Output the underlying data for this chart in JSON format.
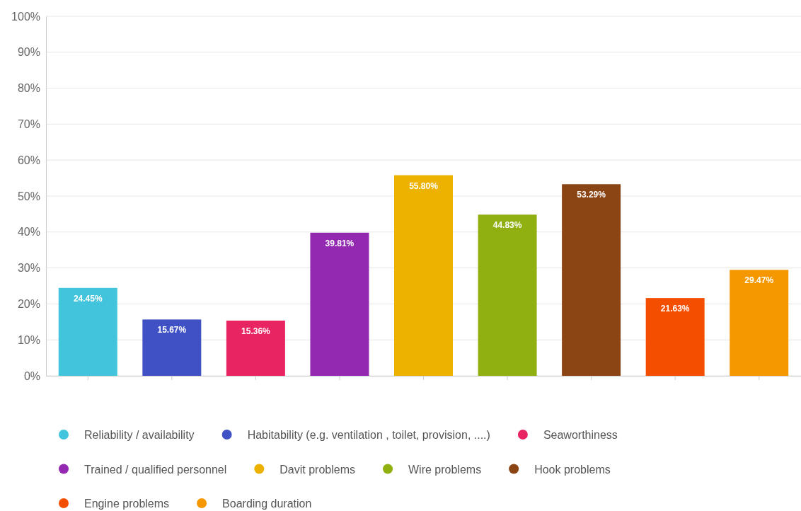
{
  "chart_data": {
    "type": "bar",
    "categories": [
      null,
      null,
      null,
      null,
      null,
      null,
      null,
      null,
      null
    ],
    "series": [
      {
        "name": "Reliability / availability",
        "color": "#42c5dc",
        "values": [
          24.45,
          null,
          null,
          null,
          null,
          null,
          null,
          null,
          null
        ],
        "value_labels": [
          "24.45%",
          null,
          null,
          null,
          null,
          null,
          null,
          null,
          null
        ]
      },
      {
        "name": "Habitability (e.g. ventilation , toilet, provision, ....)",
        "color": "#3f51c4",
        "values": [
          null,
          15.67,
          null,
          null,
          null,
          null,
          null,
          null,
          null
        ],
        "value_labels": [
          null,
          "15.67%",
          null,
          null,
          null,
          null,
          null,
          null,
          null
        ]
      },
      {
        "name": "Seaworthiness",
        "color": "#e92463",
        "values": [
          null,
          null,
          15.36,
          null,
          null,
          null,
          null,
          null,
          null
        ],
        "value_labels": [
          null,
          null,
          "15.36%",
          null,
          null,
          null,
          null,
          null,
          null
        ]
      },
      {
        "name": "Trained / qualified personnel",
        "color": "#9329b1",
        "values": [
          null,
          null,
          null,
          39.81,
          null,
          null,
          null,
          null,
          null
        ],
        "value_labels": [
          null,
          null,
          null,
          "39.81%",
          null,
          null,
          null,
          null,
          null
        ]
      },
      {
        "name": "Davit problems",
        "color": "#edb200",
        "values": [
          null,
          null,
          null,
          null,
          55.8,
          null,
          null,
          null,
          null
        ],
        "value_labels": [
          null,
          null,
          null,
          null,
          "55.80%",
          null,
          null,
          null,
          null
        ]
      },
      {
        "name": "Wire problems",
        "color": "#8fb010",
        "values": [
          null,
          null,
          null,
          null,
          null,
          44.83,
          null,
          null,
          null
        ],
        "value_labels": [
          null,
          null,
          null,
          null,
          null,
          "44.83%",
          null,
          null,
          null
        ]
      },
      {
        "name": "Hook problems",
        "color": "#8b4414",
        "values": [
          null,
          null,
          null,
          null,
          null,
          null,
          53.29,
          null,
          null
        ],
        "value_labels": [
          null,
          null,
          null,
          null,
          null,
          null,
          "53.29%",
          null,
          null
        ]
      },
      {
        "name": "Engine problems",
        "color": "#f44f00",
        "values": [
          null,
          null,
          null,
          null,
          null,
          null,
          null,
          21.63,
          null
        ],
        "value_labels": [
          null,
          null,
          null,
          null,
          null,
          null,
          null,
          "21.63%",
          null
        ]
      },
      {
        "name": "Boarding duration",
        "color": "#f59800",
        "values": [
          null,
          null,
          null,
          null,
          null,
          null,
          null,
          null,
          29.47
        ],
        "value_labels": [
          null,
          null,
          null,
          null,
          null,
          null,
          null,
          null,
          "29.47%"
        ]
      }
    ],
    "ylim": [
      0,
      100
    ],
    "yticks": [
      {
        "value": 0,
        "label": "0%"
      },
      {
        "value": 10,
        "label": "10%"
      },
      {
        "value": 20,
        "label": "20%"
      },
      {
        "value": 30,
        "label": "30%"
      },
      {
        "value": 40,
        "label": "40%"
      },
      {
        "value": 50,
        "label": "50%"
      },
      {
        "value": 60,
        "label": "60%"
      },
      {
        "value": 70,
        "label": "70%"
      },
      {
        "value": 80,
        "label": "80%"
      },
      {
        "value": 90,
        "label": "90%"
      },
      {
        "value": 100,
        "label": "100%"
      }
    ],
    "grid": "y",
    "legend": "bottom"
  }
}
